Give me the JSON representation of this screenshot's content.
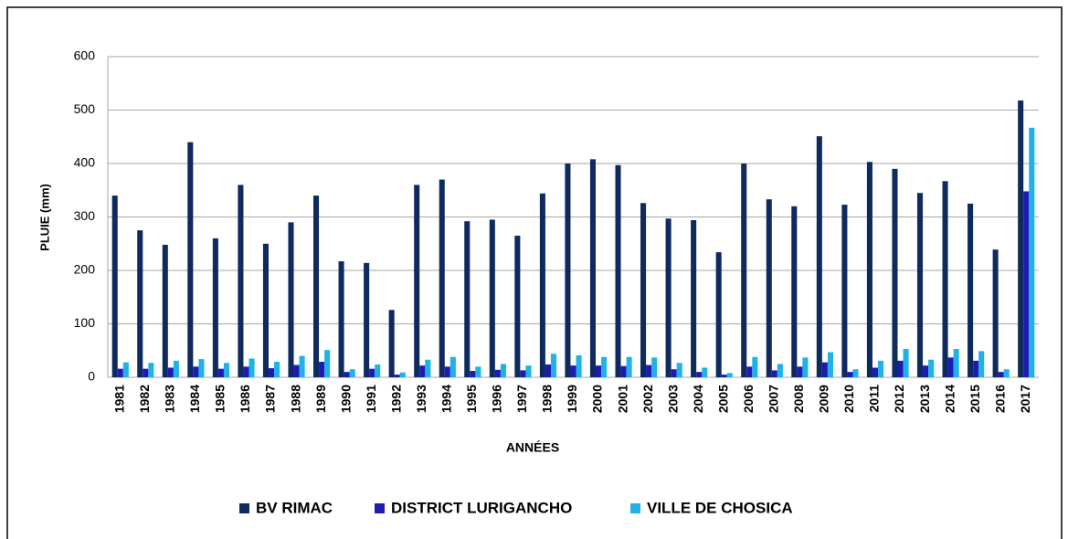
{
  "chart_data": {
    "type": "bar",
    "x_label": "ANNÉES",
    "y_label": "PLUIE (mm)",
    "categories": [
      "1981",
      "1982",
      "1983",
      "1984",
      "1985",
      "1986",
      "1987",
      "1988",
      "1989",
      "1990",
      "1991",
      "1992",
      "1993",
      "1994",
      "1995",
      "1996",
      "1997",
      "1998",
      "1999",
      "2000",
      "2001",
      "2002",
      "2003",
      "2004",
      "2005",
      "2006",
      "2007",
      "2008",
      "2009",
      "2010",
      "2011",
      "2012",
      "2013",
      "2014",
      "2015",
      "2016",
      "2017"
    ],
    "series": [
      {
        "name": "BV RIMAC",
        "color": "#0e2a5e",
        "values": [
          340,
          275,
          248,
          440,
          260,
          360,
          250,
          290,
          340,
          217,
          214,
          126,
          360,
          370,
          292,
          295,
          265,
          344,
          400,
          408,
          397,
          326,
          297,
          294,
          234,
          400,
          333,
          320,
          451,
          323,
          403,
          390,
          345,
          367,
          325,
          239,
          518
        ]
      },
      {
        "name": "DISTRICT LURIGANCHO",
        "color": "#1c1cb4",
        "values": [
          16,
          16,
          18,
          20,
          16,
          20,
          17,
          23,
          29,
          10,
          16,
          5,
          22,
          20,
          12,
          14,
          13,
          24,
          22,
          22,
          21,
          23,
          15,
          10,
          5,
          20,
          13,
          20,
          28,
          10,
          18,
          31,
          22,
          37,
          31,
          10,
          348
        ]
      },
      {
        "name": "VILLE DE CHOSICA",
        "color": "#1fb2e6",
        "values": [
          28,
          27,
          31,
          34,
          27,
          35,
          29,
          40,
          51,
          15,
          24,
          9,
          33,
          38,
          20,
          25,
          22,
          44,
          41,
          38,
          38,
          37,
          27,
          18,
          8,
          38,
          25,
          37,
          47,
          15,
          31,
          53,
          33,
          53,
          49,
          15,
          467
        ]
      }
    ],
    "ylim": [
      0,
      600
    ],
    "yticks": [
      0,
      100,
      200,
      300,
      400,
      500,
      600
    ],
    "grid": true,
    "legend": "bottom"
  }
}
